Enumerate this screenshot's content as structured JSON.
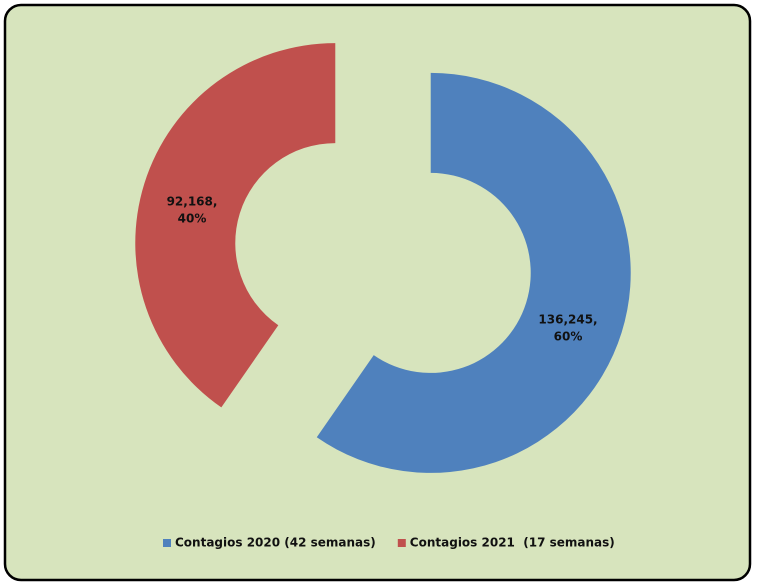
{
  "chart_data": {
    "type": "donut",
    "series": [
      {
        "name": "Contagios 2020 (42 semanas)",
        "color": "#4f81bd",
        "values": [
          136245
        ],
        "value_labels": [
          "136,245,"
        ],
        "percentages": [
          60
        ],
        "percentage_labels": [
          "60%"
        ]
      },
      {
        "name": "Contagios 2021  (17 semanas)",
        "color": "#c0504d",
        "values": [
          92168
        ],
        "value_labels": [
          "92,168,"
        ],
        "percentages": [
          40
        ],
        "percentage_labels": [
          "40%"
        ]
      }
    ],
    "legend": "bottom"
  }
}
